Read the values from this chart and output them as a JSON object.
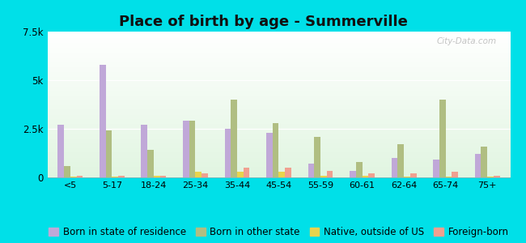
{
  "title": "Place of birth by age - Summerville",
  "categories": [
    "<5",
    "5-17",
    "18-24",
    "25-34",
    "35-44",
    "45-54",
    "55-59",
    "60-61",
    "62-64",
    "65-74",
    "75+"
  ],
  "series": {
    "Born in state of residence": [
      2700,
      5800,
      2700,
      2900,
      2500,
      2300,
      700,
      350,
      1000,
      900,
      1200
    ],
    "Born in other state": [
      600,
      2400,
      1400,
      2900,
      4000,
      2800,
      2100,
      800,
      1700,
      4000,
      1600
    ],
    "Native, outside of US": [
      50,
      50,
      100,
      280,
      280,
      280,
      100,
      100,
      50,
      50,
      50
    ],
    "Foreign-born": [
      100,
      100,
      100,
      200,
      500,
      500,
      350,
      200,
      200,
      300,
      100
    ]
  },
  "colors": {
    "Born in state of residence": "#c0a8d8",
    "Born in other state": "#b0be82",
    "Native, outside of US": "#e8d44d",
    "Foreign-born": "#f0a090"
  },
  "ylim": [
    0,
    7500
  ],
  "yticks": [
    0,
    2500,
    5000,
    7500
  ],
  "ytick_labels": [
    "0",
    "2.5k",
    "5k",
    "7.5k"
  ],
  "cyan_bg": "#00e0e8",
  "bar_width": 0.15,
  "title_fontsize": 13,
  "legend_fontsize": 8.5,
  "watermark": "City-Data.com"
}
